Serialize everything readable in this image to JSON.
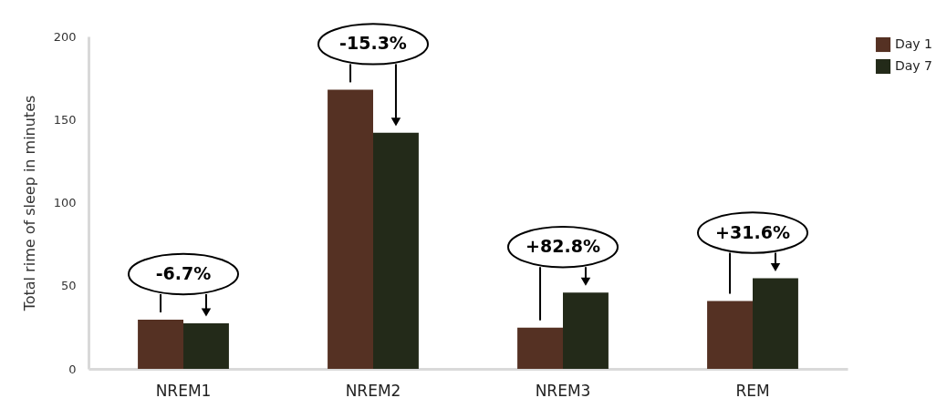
{
  "chart_data": {
    "type": "bar",
    "ylabel": "Total rime of sleep in minutes",
    "categories": [
      "NREM1",
      "NREM2",
      "NREM3",
      "REM"
    ],
    "series": [
      {
        "name": "Day 1",
        "color": "#553123",
        "values": [
          29.6,
          168,
          24.8,
          40.8
        ]
      },
      {
        "name": "Day 7",
        "color": "#232a19",
        "values": [
          27.4,
          142,
          45.9,
          54.5
        ]
      }
    ],
    "ylim": [
      0,
      200
    ],
    "yticks": [
      0,
      50,
      100,
      150,
      200
    ],
    "legend": "top right",
    "annotations": [
      "-6.7%",
      "-15.3%",
      "+82.8%",
      "+31.6%"
    ]
  }
}
